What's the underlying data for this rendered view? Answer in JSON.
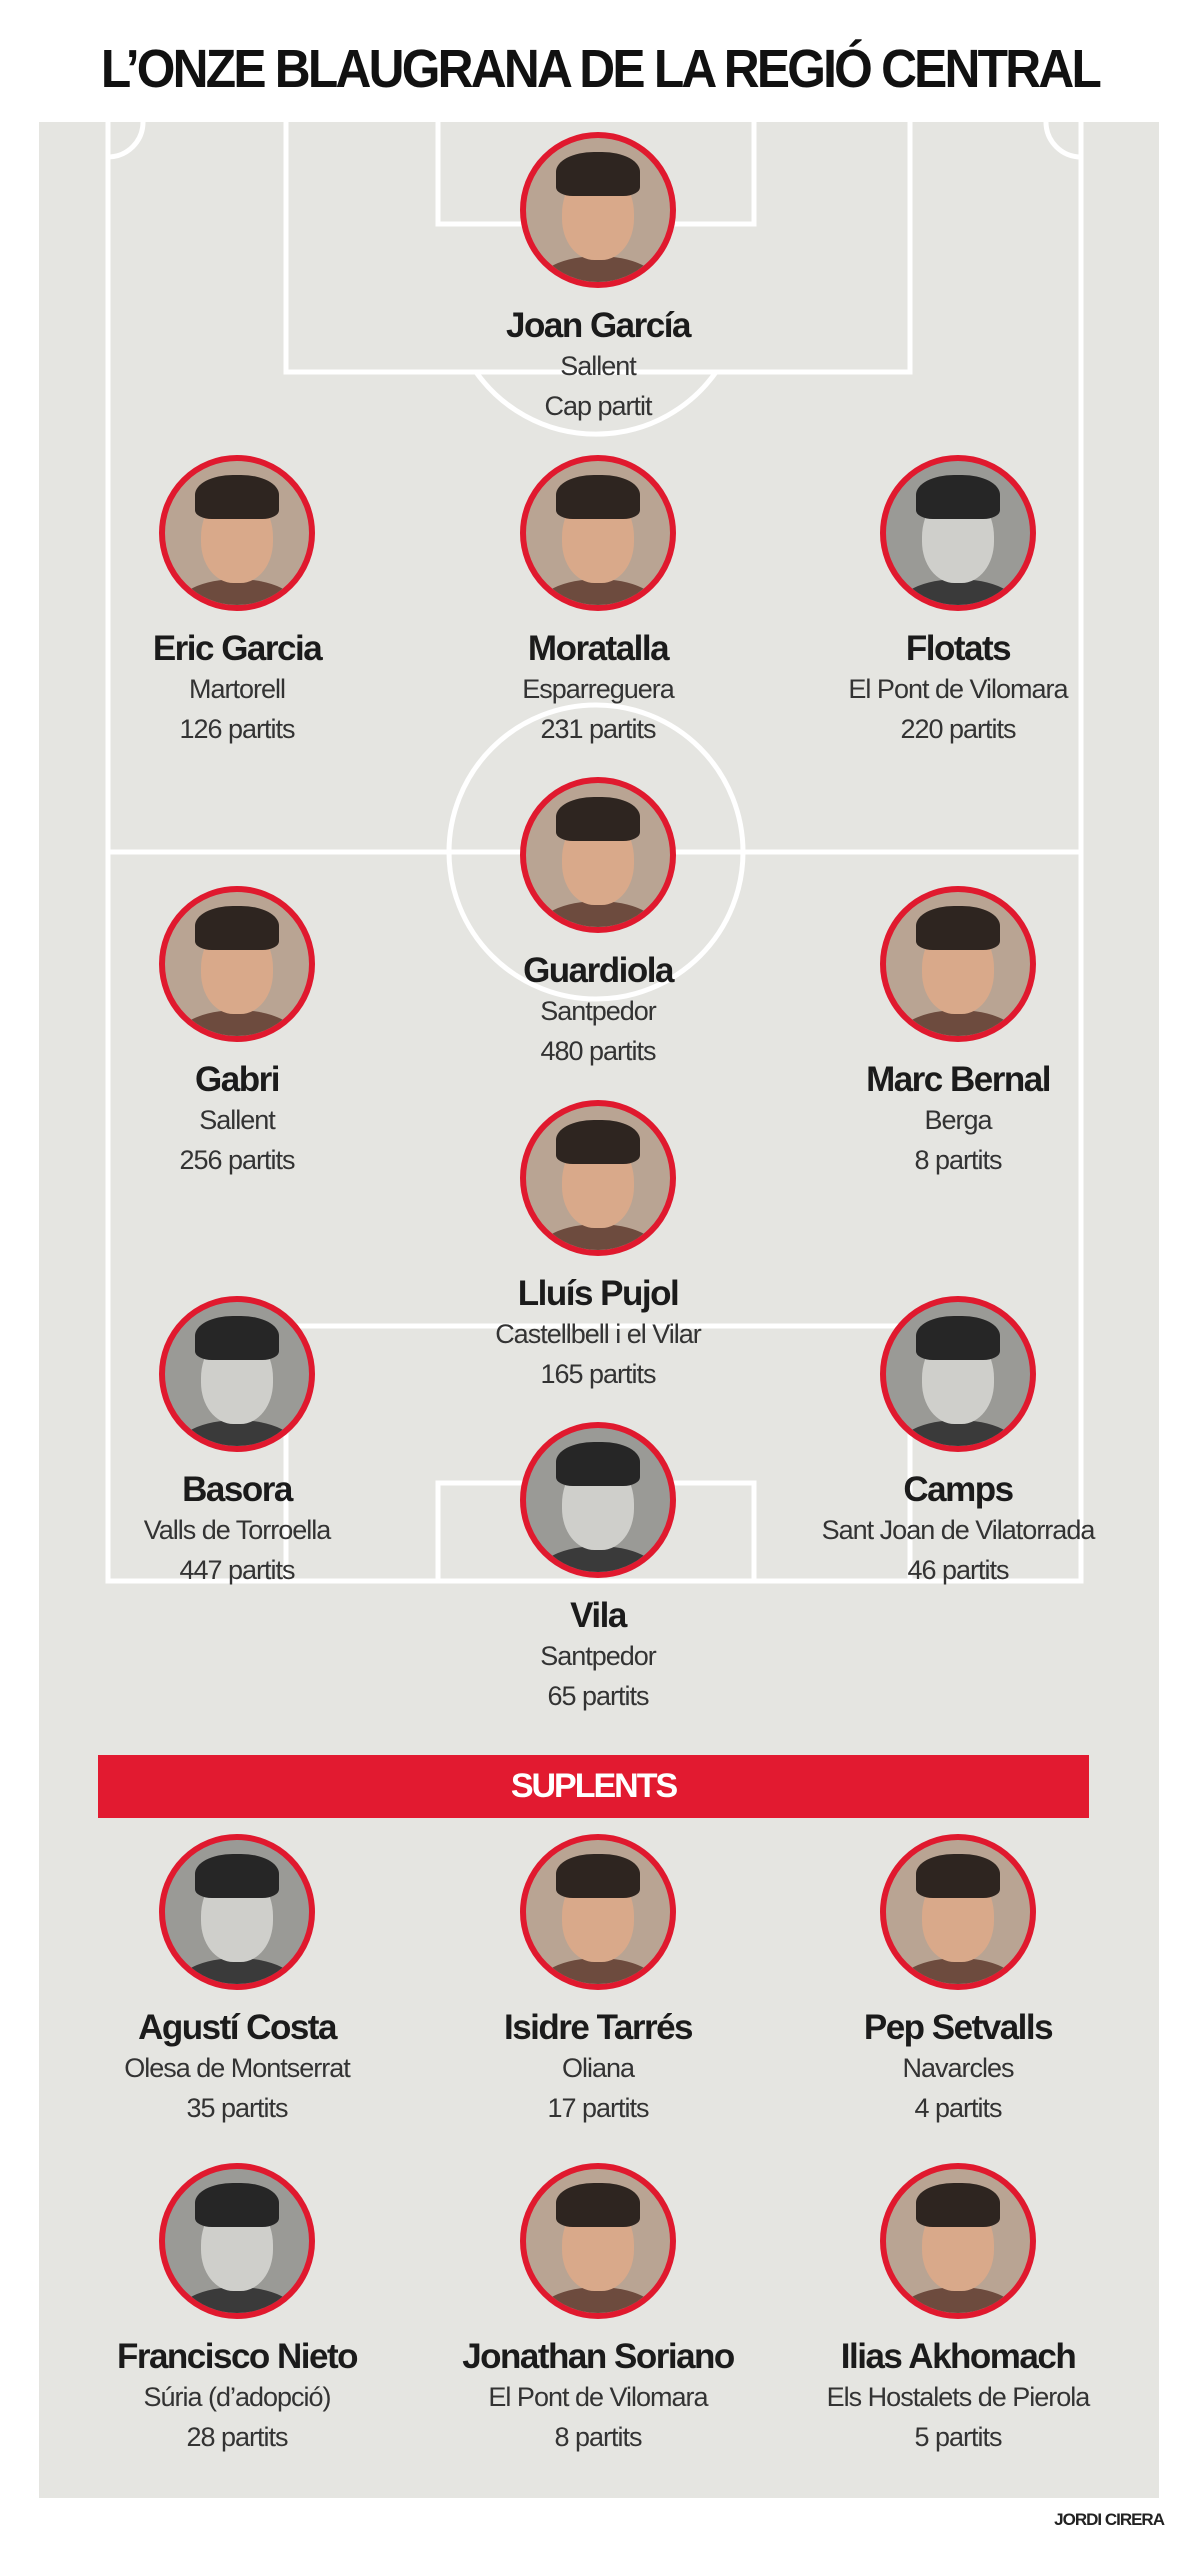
{
  "title": "L’ONZE BLAUGRANA DE LA REGIÓ CENTRAL",
  "colors": {
    "accent": "#e0192e",
    "field": "#e5e5e1",
    "lines": "#ffffff"
  },
  "starters": [
    {
      "name": "Joan García",
      "town": "Sallent",
      "matches": "Cap partit"
    },
    {
      "name": "Eric Garcia",
      "town": "Martorell",
      "matches": "126 partits"
    },
    {
      "name": "Moratalla",
      "town": "Esparreguera",
      "matches": "231 partits"
    },
    {
      "name": "Flotats",
      "town": "El Pont de Vilomara",
      "matches": "220 partits"
    },
    {
      "name": "Guardiola",
      "town": "Santpedor",
      "matches": "480 partits"
    },
    {
      "name": "Gabri",
      "town": "Sallent",
      "matches": "256 partits"
    },
    {
      "name": "Marc Bernal",
      "town": "Berga",
      "matches": "8 partits"
    },
    {
      "name": "Lluís Pujol",
      "town": "Castellbell i el Vilar",
      "matches": "165 partits"
    },
    {
      "name": "Basora",
      "town": "Valls de Torroella",
      "matches": "447 partits"
    },
    {
      "name": "Camps",
      "town": "Sant Joan de Vilatorrada",
      "matches": "46 partits"
    },
    {
      "name": "Vila",
      "town": "Santpedor",
      "matches": "65 partits"
    }
  ],
  "substitutes_label": "SUPLENTS",
  "substitutes": [
    {
      "name": "Agustí Costa",
      "town": "Olesa de Montserrat",
      "matches": "35 partits"
    },
    {
      "name": "Isidre Tarrés",
      "town": "Oliana",
      "matches": "17 partits"
    },
    {
      "name": "Pep Setvalls",
      "town": "Navarcles",
      "matches": "4 partits"
    },
    {
      "name": "Francisco Nieto",
      "town": "Súria (d’adopció)",
      "matches": "28 partits"
    },
    {
      "name": "Jonathan Soriano",
      "town": "El Pont de Vilomara",
      "matches": "8 partits"
    },
    {
      "name": "Ilias Akhomach",
      "town": "Els Hostalets de Pierola",
      "matches": "5 partits"
    }
  ],
  "credit": "JORDI CIRERA"
}
